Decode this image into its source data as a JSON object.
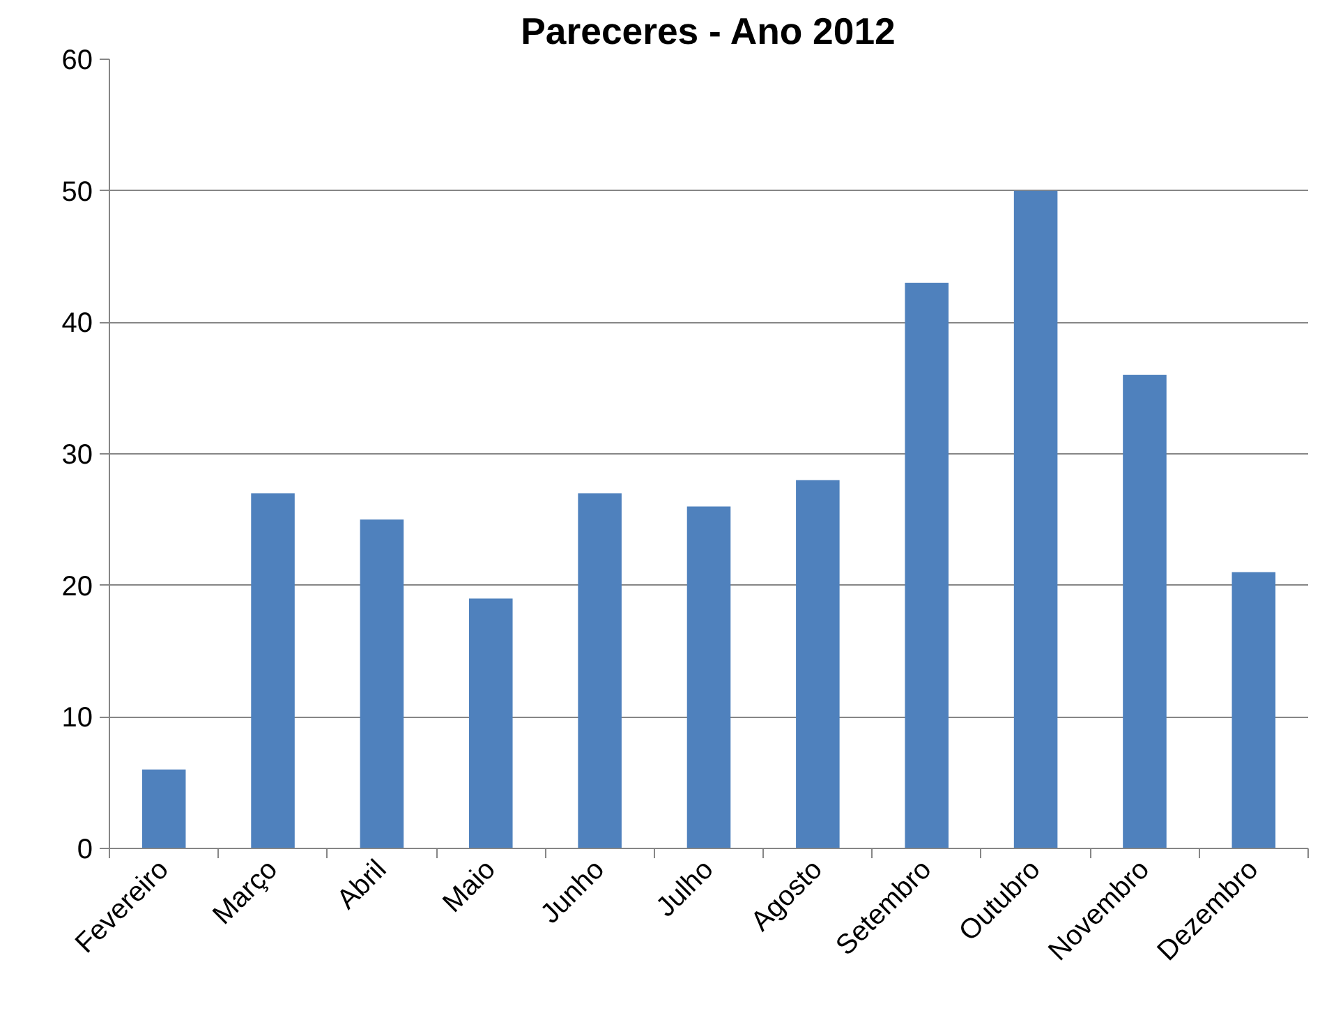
{
  "chart_data": {
    "type": "bar",
    "title": "Pareceres - Ano 2012",
    "categories": [
      "Fevereiro",
      "Março",
      "Abril",
      "Maio",
      "Junho",
      "Julho",
      "Agosto",
      "Setembro",
      "Outubro",
      "Novembro",
      "Dezembro"
    ],
    "values": [
      6,
      27,
      25,
      19,
      27,
      26,
      28,
      43,
      50,
      36,
      21
    ],
    "color": "#4f81bd",
    "ylim": [
      0,
      60
    ],
    "yticks": [
      0,
      10,
      20,
      30,
      40,
      50,
      60
    ],
    "grid": "y"
  }
}
